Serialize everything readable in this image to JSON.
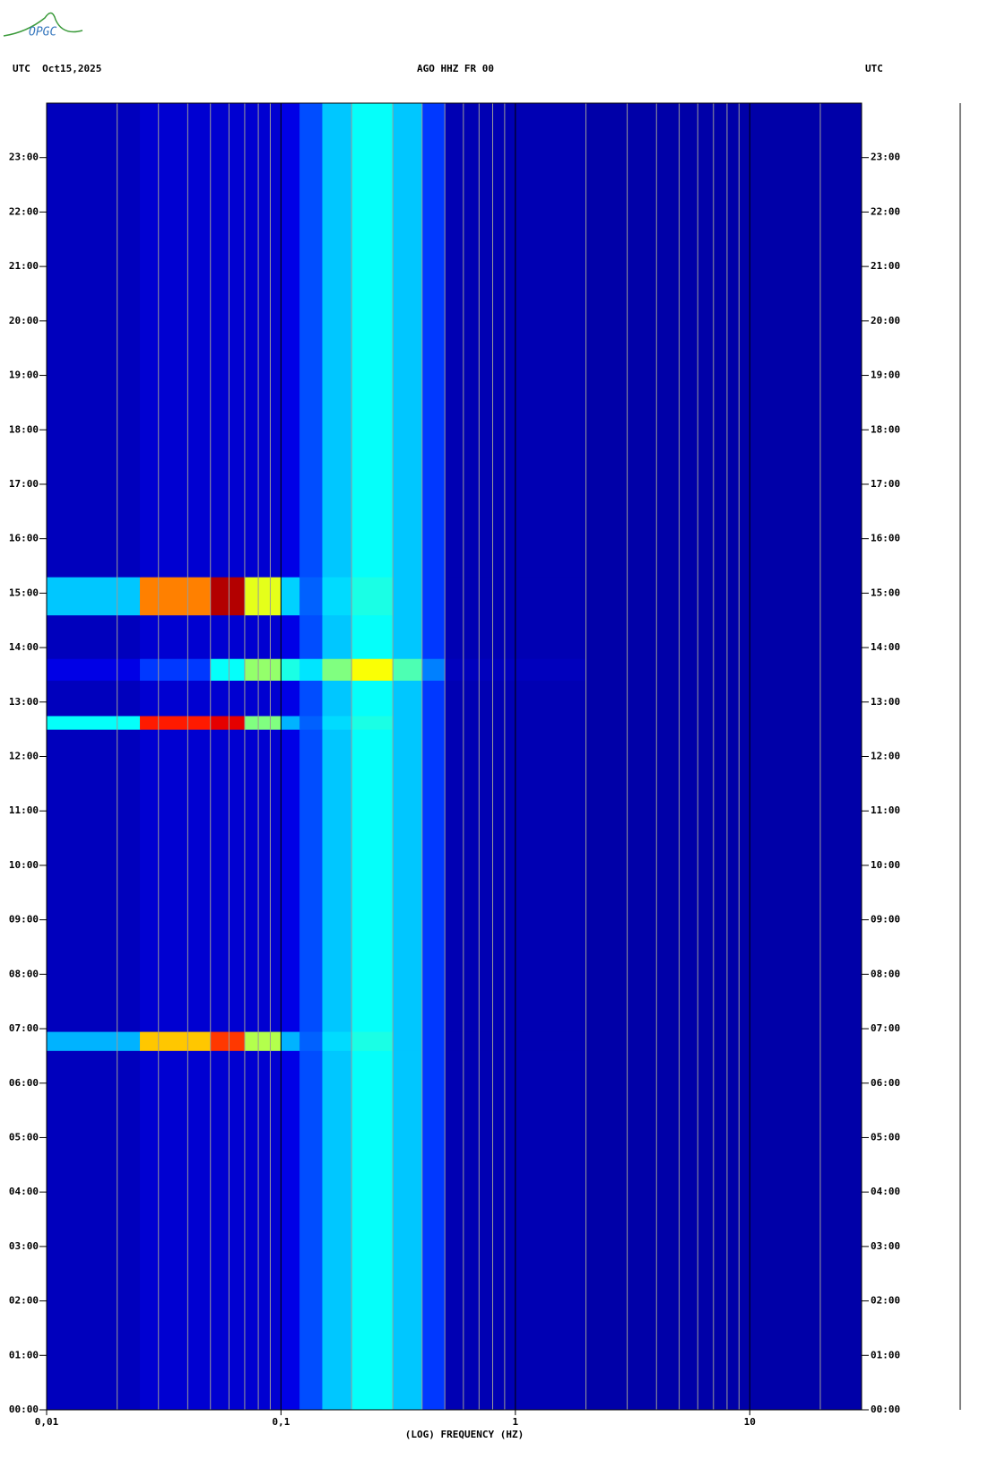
{
  "logo": {
    "text": "OPGC"
  },
  "chart_data": {
    "type": "spectrogram",
    "title": "AGO HHZ FR 00",
    "left_label": "UTC  Oct15,2025",
    "right_label": "UTC",
    "xlabel": "(LOG) FREQUENCY (HZ)",
    "xscale": "log",
    "xlim": [
      0.01,
      30
    ],
    "xticks": [
      {
        "value": 0.01,
        "label": "0,01"
      },
      {
        "value": 0.1,
        "label": "0,1"
      },
      1,
      10
    ],
    "xgrid": [
      0.02,
      0.03,
      0.04,
      0.05,
      0.06,
      0.07,
      0.08,
      0.09,
      0.2,
      0.3,
      0.4,
      0.5,
      0.6,
      0.7,
      0.8,
      0.9,
      2,
      3,
      4,
      5,
      6,
      7,
      8,
      9,
      20
    ],
    "ylim": [
      0,
      24
    ],
    "yticks": [
      {
        "value": 0,
        "label": "00:00"
      },
      {
        "value": 1,
        "label": "01:00"
      },
      {
        "value": 2,
        "label": "02:00"
      },
      {
        "value": 3,
        "label": "03:00"
      },
      {
        "value": 4,
        "label": "04:00"
      },
      {
        "value": 5,
        "label": "05:00"
      },
      {
        "value": 6,
        "label": "06:00"
      },
      {
        "value": 7,
        "label": "07:00"
      },
      {
        "value": 8,
        "label": "08:00"
      },
      {
        "value": 9,
        "label": "09:00"
      },
      {
        "value": 10,
        "label": "10:00"
      },
      {
        "value": 11,
        "label": "11:00"
      },
      {
        "value": 12,
        "label": "12:00"
      },
      {
        "value": 13,
        "label": "13:00"
      },
      {
        "value": 14,
        "label": "14:00"
      },
      {
        "value": 15,
        "label": "15:00"
      },
      {
        "value": 16,
        "label": "16:00"
      },
      {
        "value": 17,
        "label": "17:00"
      },
      {
        "value": 18,
        "label": "18:00"
      },
      {
        "value": 19,
        "label": "19:00"
      },
      {
        "value": 20,
        "label": "20:00"
      },
      {
        "value": 21,
        "label": "21:00"
      },
      {
        "value": 22,
        "label": "22:00"
      },
      {
        "value": 23,
        "label": "23:00"
      }
    ],
    "colormap": "jet",
    "x_edges": [
      0.01,
      0.025,
      0.05,
      0.07,
      0.1,
      0.12,
      0.15,
      0.2,
      0.3,
      0.4,
      0.5,
      2,
      30
    ],
    "y_edges": [
      0,
      6.6,
      6.95,
      12.5,
      12.75,
      13.4,
      13.8,
      14.6,
      15.3,
      24
    ],
    "values": [
      [
        0.06,
        0.08,
        0.08,
        0.08,
        0.1,
        0.2,
        0.32,
        0.38,
        0.32,
        0.18,
        0.05,
        0.04
      ],
      [
        0.3,
        0.68,
        0.82,
        0.55,
        0.3,
        0.22,
        0.34,
        0.4,
        0.32,
        0.18,
        0.05,
        0.04
      ],
      [
        0.06,
        0.08,
        0.08,
        0.08,
        0.1,
        0.2,
        0.32,
        0.38,
        0.32,
        0.18,
        0.05,
        0.04
      ],
      [
        0.38,
        0.85,
        0.9,
        0.5,
        0.3,
        0.22,
        0.34,
        0.4,
        0.32,
        0.18,
        0.05,
        0.04
      ],
      [
        0.06,
        0.08,
        0.08,
        0.08,
        0.1,
        0.2,
        0.32,
        0.38,
        0.32,
        0.18,
        0.05,
        0.04
      ],
      [
        0.1,
        0.18,
        0.38,
        0.52,
        0.4,
        0.35,
        0.5,
        0.62,
        0.45,
        0.25,
        0.06,
        0.04
      ],
      [
        0.06,
        0.08,
        0.08,
        0.08,
        0.1,
        0.2,
        0.32,
        0.38,
        0.32,
        0.18,
        0.05,
        0.04
      ],
      [
        0.32,
        0.75,
        0.95,
        0.6,
        0.33,
        0.22,
        0.34,
        0.4,
        0.32,
        0.18,
        0.05,
        0.04
      ],
      [
        0.06,
        0.08,
        0.08,
        0.08,
        0.1,
        0.2,
        0.32,
        0.38,
        0.32,
        0.18,
        0.05,
        0.04
      ]
    ]
  }
}
